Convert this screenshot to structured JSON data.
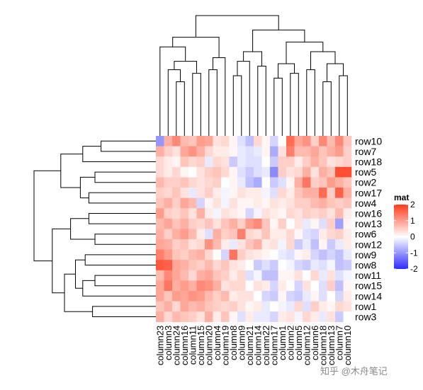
{
  "chart_data": {
    "type": "heatmap",
    "legend": {
      "title": "mat",
      "ticks": [
        "2",
        "1",
        "0",
        "-1",
        "-2"
      ],
      "tick_values": [
        2,
        1,
        0,
        -1,
        -2
      ],
      "range": [
        -2,
        2
      ],
      "colors": {
        "low": "#2c2cff",
        "mid": "#ffffff",
        "high": "#ff3a1a"
      },
      "placement": "right"
    },
    "row_labels": [
      "row10",
      "row7",
      "row18",
      "row5",
      "row2",
      "row17",
      "row4",
      "row16",
      "row13",
      "row6",
      "row12",
      "row9",
      "row8",
      "row11",
      "row15",
      "row14",
      "row1",
      "row3"
    ],
    "col_labels": [
      "column23",
      "column3",
      "column24",
      "column16",
      "column11",
      "column15",
      "column20",
      "column4",
      "column19",
      "column8",
      "column9",
      "column21",
      "column14",
      "column22",
      "column17",
      "column1",
      "column2",
      "column5",
      "column12",
      "column6",
      "column18",
      "column13",
      "column7",
      "column10"
    ],
    "values": [
      [
        -1.0,
        0.8,
        1.2,
        0.7,
        0.6,
        1.0,
        0.9,
        0.3,
        0.4,
        0.1,
        -0.3,
        -0.6,
        0.4,
        0.1,
        -0.4,
        0.0,
        1.5,
        0.9,
        1.1,
        0.5,
        1.2,
        0.7,
        1.2,
        0.6
      ],
      [
        0.8,
        0.5,
        0.3,
        0.9,
        1.1,
        0.8,
        0.4,
        0.2,
        0.2,
        0.1,
        -0.2,
        -0.3,
        -0.2,
        0.1,
        -0.8,
        0.3,
        1.3,
        0.7,
        0.7,
        0.9,
        0.6,
        0.8,
        1.0,
        0.5
      ],
      [
        0.4,
        0.2,
        0.1,
        0.6,
        0.4,
        0.5,
        -0.2,
        0.4,
        0.3,
        -0.5,
        -0.2,
        -0.3,
        -0.3,
        0.0,
        -0.5,
        0.5,
        0.5,
        0.2,
        0.5,
        0.8,
        0.6,
        0.3,
        0.4,
        0.5
      ],
      [
        0.4,
        0.2,
        0.4,
        0.1,
        0.0,
        0.3,
        0.5,
        0.6,
        0.4,
        0.1,
        -0.3,
        -0.5,
        -0.3,
        -0.2,
        -1.1,
        0.5,
        0.3,
        0.4,
        0.8,
        0.3,
        0.8,
        0.6,
        1.8,
        1.8
      ],
      [
        0.7,
        0.5,
        0.5,
        0.6,
        0.4,
        0.3,
        0.4,
        0.5,
        0.0,
        0.1,
        -0.2,
        -0.6,
        -0.8,
        0.0,
        -0.5,
        -0.3,
        0.1,
        0.8,
        1.4,
        0.5,
        0.6,
        1.0,
        0.8,
        0.6
      ],
      [
        0.5,
        0.4,
        0.6,
        0.3,
        -0.2,
        0.3,
        0.5,
        0.2,
        -0.1,
        0.1,
        0.3,
        0.2,
        0.2,
        -0.1,
        -0.3,
        0.4,
        0.2,
        0.6,
        0.8,
        0.8,
        1.5,
        0.5,
        1.6,
        0.8
      ],
      [
        0.6,
        0.8,
        0.5,
        0.9,
        0.7,
        -0.4,
        0.1,
        0.3,
        -0.1,
        0.3,
        0.1,
        0.1,
        0.2,
        0.1,
        0.3,
        0.2,
        0.3,
        0.5,
        0.5,
        0.7,
        0.8,
        0.6,
        0.5,
        0.6
      ],
      [
        1.0,
        0.5,
        0.4,
        0.6,
        0.3,
        0.8,
        0.2,
        -0.1,
        0.3,
        0.2,
        0.1,
        -0.4,
        -0.1,
        0.3,
        0.2,
        0.1,
        0.4,
        0.3,
        0.5,
        0.4,
        0.5,
        0.3,
        0.7,
        0.2
      ],
      [
        0.7,
        0.9,
        0.6,
        0.8,
        0.5,
        0.4,
        0.6,
        0.3,
        0.6,
        0.8,
        0.5,
        1.0,
        1.2,
        0.6,
        0.1,
        0.5,
        0.0,
        0.3,
        -0.2,
        0.1,
        -0.3,
        0.5,
        -0.9,
        0.1
      ],
      [
        0.8,
        0.5,
        0.8,
        1.0,
        0.7,
        0.2,
        -0.3,
        0.8,
        0.5,
        0.6,
        1.3,
        0.4,
        0.3,
        0.6,
        0.2,
        0.2,
        0.4,
        0.1,
        -0.3,
        -0.4,
        0.2,
        0.4,
        0.5,
        0.2
      ],
      [
        0.9,
        0.8,
        0.5,
        0.6,
        0.3,
        0.4,
        1.1,
        0.7,
        0.2,
        -0.2,
        0.3,
        0.6,
        0.8,
        0.2,
        0.3,
        -0.1,
        0.4,
        -0.5,
        -0.2,
        -0.6,
        0.1,
        -0.5,
        -0.2,
        0.2
      ],
      [
        1.3,
        1.0,
        0.6,
        0.5,
        0.7,
        0.8,
        0.4,
        0.0,
        -0.4,
        1.4,
        0.5,
        0.3,
        0.2,
        0.1,
        0.0,
        -0.2,
        -0.3,
        0.1,
        0.2,
        -0.4,
        -0.6,
        -0.4,
        -0.6,
        -0.2
      ],
      [
        1.7,
        1.6,
        0.9,
        0.8,
        0.6,
        0.5,
        0.7,
        0.4,
        0.6,
        0.3,
        0.2,
        0.0,
        -0.5,
        -0.3,
        -0.5,
        0.0,
        -0.1,
        -0.4,
        -0.5,
        -0.2,
        -0.3,
        -0.1,
        -0.6,
        -0.5
      ],
      [
        0.7,
        1.2,
        0.9,
        0.7,
        0.4,
        0.8,
        0.9,
        0.6,
        0.5,
        0.2,
        0.4,
        -0.3,
        -0.1,
        -0.6,
        -0.6,
        0.1,
        0.1,
        0.3,
        0.0,
        0.4,
        -0.2,
        0.3,
        -0.3,
        -0.1
      ],
      [
        0.9,
        1.4,
        0.8,
        1.0,
        0.8,
        1.2,
        1.1,
        0.8,
        0.3,
        0.4,
        0.4,
        0.0,
        0.3,
        0.2,
        -0.4,
        0.2,
        0.0,
        -0.4,
        0.3,
        0.0,
        -0.3,
        0.5,
        -0.6,
        0.1
      ],
      [
        0.9,
        0.6,
        1.0,
        0.9,
        1.1,
        1.0,
        0.7,
        0.5,
        0.7,
        0.2,
        0.3,
        0.3,
        0.0,
        -0.4,
        -0.5,
        0.1,
        -0.4,
        -0.5,
        -0.2,
        0.1,
        -0.3,
        0.0,
        -0.4,
        0.2
      ],
      [
        0.6,
        0.8,
        0.4,
        0.9,
        0.7,
        0.8,
        0.6,
        0.5,
        0.4,
        0.5,
        0.3,
        0.1,
        0.2,
        -0.2,
        0.0,
        -0.1,
        -0.2,
        0.4,
        -0.3,
        0.5,
        0.2,
        0.1,
        0.4,
        0.3
      ],
      [
        0.8,
        0.4,
        0.7,
        0.6,
        0.5,
        0.3,
        0.8,
        0.2,
        0.6,
        0.1,
        -0.3,
        0.2,
        -0.2,
        -0.2,
        -0.4,
        0.2,
        0.3,
        -0.1,
        0.4,
        0.2,
        -0.2,
        0.3,
        -0.5,
        0.0
      ]
    ]
  },
  "watermark": "知乎 @木舟笔记"
}
